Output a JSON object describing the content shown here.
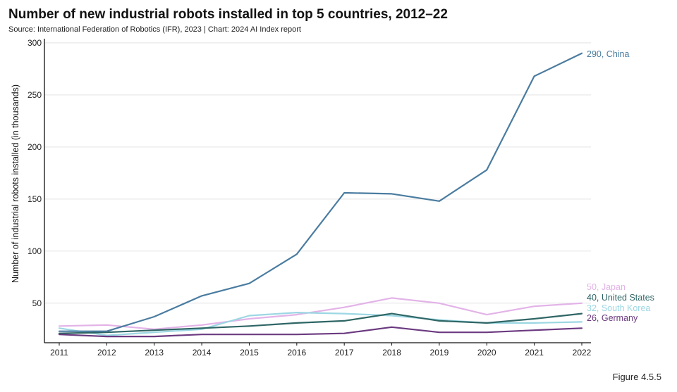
{
  "chart_data": {
    "type": "line",
    "title": "Number of new industrial robots installed in top 5 countries, 2012–22",
    "subtitle": "Source: International Federation of Robotics (IFR), 2023 | Chart: 2024 AI Index report",
    "xlabel": "",
    "ylabel": "Number of industrial robots installed (in thousands)",
    "x": [
      2011,
      2012,
      2013,
      2014,
      2015,
      2016,
      2017,
      2018,
      2019,
      2020,
      2021,
      2022
    ],
    "xticks": [
      "2011",
      "2012",
      "2013",
      "2014",
      "2015",
      "2016",
      "2017",
      "2018",
      "2019",
      "2020",
      "2021",
      "2022"
    ],
    "yticks": [
      50,
      100,
      150,
      200,
      250,
      300
    ],
    "ylim": [
      12,
      304
    ],
    "grid": true,
    "series": [
      {
        "name": "China",
        "end_label": "290, China",
        "color": "#4a7ca0",
        "values": [
          23,
          23,
          37,
          57,
          69,
          97,
          156,
          155,
          148,
          178,
          268,
          290
        ]
      },
      {
        "name": "Japan",
        "end_label": "50, Japan",
        "color": "#e3b3e8",
        "values": [
          28,
          29,
          25,
          29,
          35,
          39,
          46,
          55,
          50,
          39,
          47,
          50
        ]
      },
      {
        "name": "United States",
        "end_label": "40, United States",
        "color": "#2f6665",
        "values": [
          21,
          22,
          24,
          26,
          28,
          31,
          33,
          40,
          33,
          31,
          35,
          40
        ]
      },
      {
        "name": "South Korea",
        "end_label": "32, South Korea",
        "color": "#9cd7e3",
        "values": [
          26,
          19,
          22,
          25,
          38,
          41,
          40,
          38,
          34,
          31,
          31,
          32
        ]
      },
      {
        "name": "Germany",
        "end_label": "26, Germany",
        "color": "#6b3a80",
        "values": [
          20,
          18,
          18,
          20,
          20,
          20,
          21,
          27,
          22,
          22,
          24,
          26
        ]
      }
    ]
  },
  "footer": {
    "figure_label": "Figure 4.5.5"
  }
}
